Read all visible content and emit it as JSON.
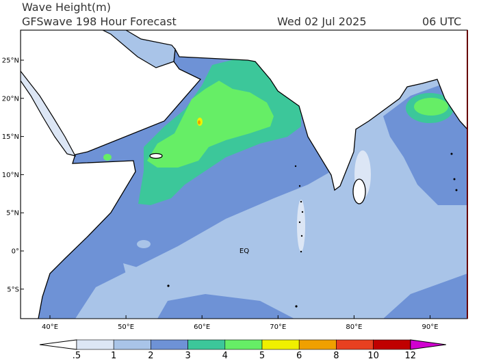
{
  "header": {
    "title": "Wave Height(m)",
    "subtitle": "GFSwave 198 Hour Forecast",
    "date": "Wed 02 Jul 2025",
    "time": "06 UTC"
  },
  "map": {
    "longitude_labels": [
      "40°E",
      "50°E",
      "60°E",
      "70°E",
      "80°E",
      "90°E"
    ],
    "latitude_labels": [
      "25°N",
      "20°N",
      "15°N",
      "10°N",
      "5°N",
      "0°",
      "5°S"
    ],
    "equator_label": "EQ"
  },
  "colorbar": {
    "labels": [
      ".5",
      "1",
      "2",
      "3",
      "4",
      "5",
      "6",
      "8",
      "10",
      "12"
    ]
  }
}
